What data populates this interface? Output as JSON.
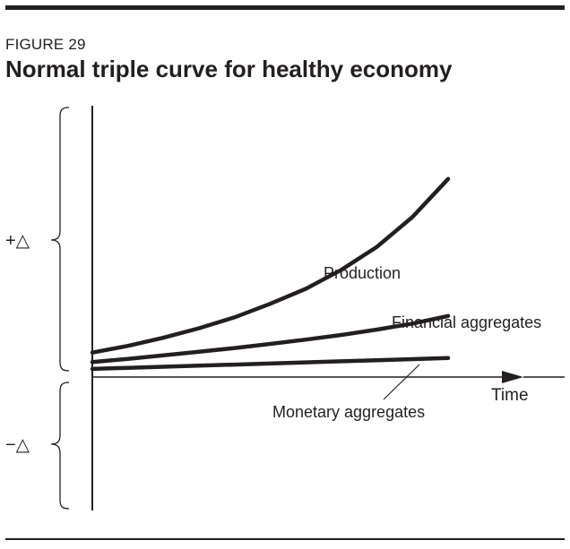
{
  "figure": {
    "label": "FIGURE 29",
    "title": "Normal triple curve for healthy economy"
  },
  "chart_data": {
    "type": "line",
    "title": "Normal triple curve for healthy economy",
    "xlabel": "Time",
    "ylabel": "",
    "y_region_labels": [
      "+△",
      "−△"
    ],
    "axes_ticks": "none",
    "grid": false,
    "legend": "none; series labeled directly on the chart",
    "xlim": [
      0,
      10
    ],
    "ylim": [
      -10,
      10
    ],
    "x": [
      0,
      1,
      2,
      3,
      4,
      5,
      6,
      7,
      8,
      9,
      10
    ],
    "series": [
      {
        "name": "Production",
        "values": [
          0.9,
          1.15,
          1.45,
          1.8,
          2.2,
          2.7,
          3.25,
          3.95,
          4.8,
          5.9,
          7.3
        ]
      },
      {
        "name": "Financial aggregates",
        "values": [
          0.55,
          0.67,
          0.8,
          0.93,
          1.07,
          1.22,
          1.38,
          1.55,
          1.75,
          1.97,
          2.25
        ]
      },
      {
        "name": "Monetary aggregates",
        "values": [
          0.3,
          0.34,
          0.38,
          0.42,
          0.46,
          0.5,
          0.54,
          0.58,
          0.62,
          0.66,
          0.7
        ]
      }
    ],
    "color": "#231f20"
  }
}
